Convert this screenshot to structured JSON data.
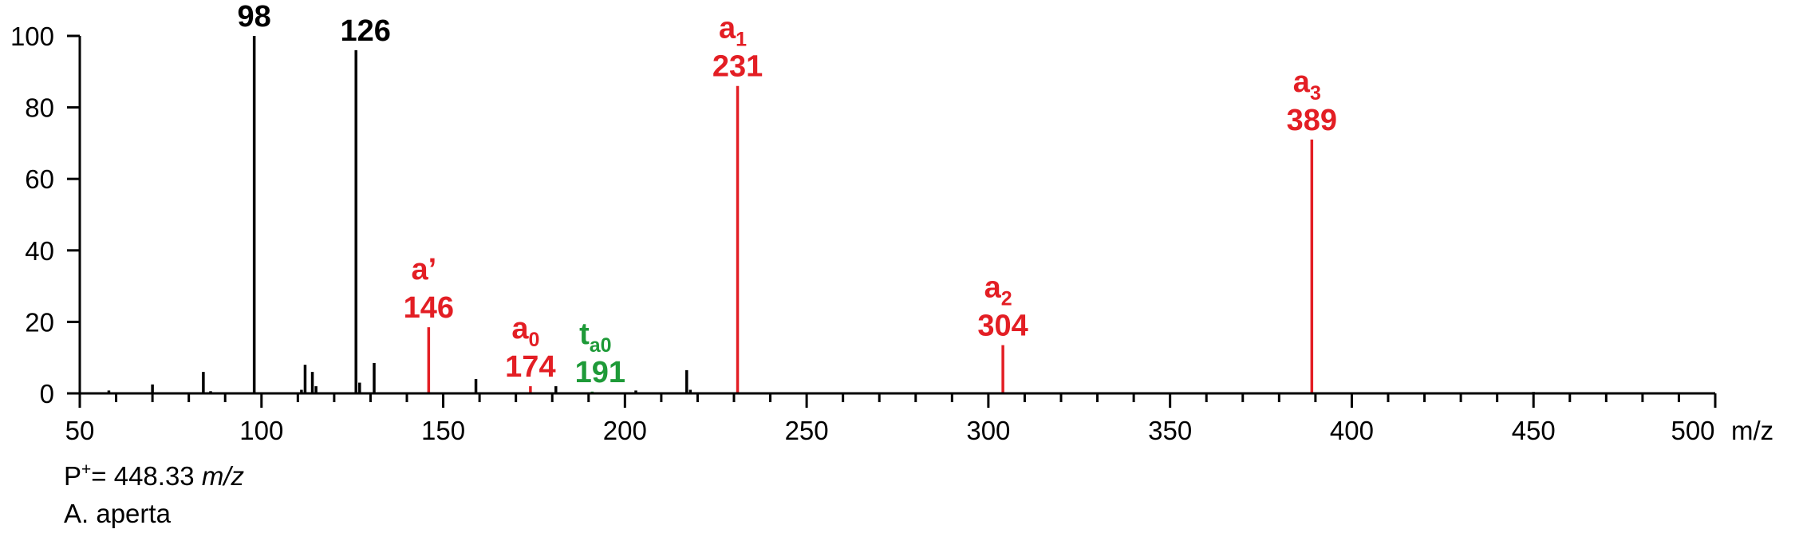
{
  "chart_data": {
    "type": "bar",
    "xlabel": "m/z",
    "xlim": [
      50,
      500
    ],
    "ylim": [
      0,
      100
    ],
    "x_ticks": [
      "50",
      "100",
      "150",
      "200",
      "250",
      "300",
      "350",
      "400",
      "450",
      "500"
    ],
    "x_unit_label": "m/z",
    "y_ticks": [
      "0",
      "20",
      "40",
      "60",
      "80",
      "100"
    ],
    "colors": {
      "black": "#000000",
      "red": "#e31e24",
      "green": "#1e9a38"
    },
    "peaks": [
      {
        "x": 58,
        "y": 0.8,
        "color": "black"
      },
      {
        "x": 70,
        "y": 2.5,
        "color": "black"
      },
      {
        "x": 84,
        "y": 6,
        "color": "black"
      },
      {
        "x": 86,
        "y": 0.6,
        "color": "black"
      },
      {
        "x": 98,
        "y": 100,
        "color": "black",
        "label": "98"
      },
      {
        "x": 111,
        "y": 1,
        "color": "black"
      },
      {
        "x": 112,
        "y": 8,
        "color": "black"
      },
      {
        "x": 114,
        "y": 6,
        "color": "black"
      },
      {
        "x": 115,
        "y": 2,
        "color": "black"
      },
      {
        "x": 126,
        "y": 96,
        "color": "black",
        "label": "126"
      },
      {
        "x": 127,
        "y": 3,
        "color": "black"
      },
      {
        "x": 131,
        "y": 8.5,
        "color": "black"
      },
      {
        "x": 146,
        "y": 18.5,
        "color": "red",
        "label": "146",
        "ion": "a",
        "ion_sub": "’"
      },
      {
        "x": 159,
        "y": 4,
        "color": "black"
      },
      {
        "x": 174,
        "y": 2,
        "color": "red",
        "label": "174",
        "ion": "a",
        "ion_sub": "0"
      },
      {
        "x": 181,
        "y": 2,
        "color": "black"
      },
      {
        "x": 191,
        "y": 0.5,
        "color": "green",
        "label": "191",
        "ion": "t",
        "ion_sub": "a0"
      },
      {
        "x": 203,
        "y": 0.8,
        "color": "black"
      },
      {
        "x": 217,
        "y": 6.5,
        "color": "black"
      },
      {
        "x": 218,
        "y": 1,
        "color": "black"
      },
      {
        "x": 231,
        "y": 86,
        "color": "red",
        "label": "231",
        "ion": "a",
        "ion_sub": "1"
      },
      {
        "x": 304,
        "y": 13.5,
        "color": "red",
        "label": "304",
        "ion": "a",
        "ion_sub": "2"
      },
      {
        "x": 389,
        "y": 71,
        "color": "red",
        "label": "389",
        "ion": "a",
        "ion_sub": "3"
      },
      {
        "x": 450,
        "y": 0.4,
        "color": "black"
      }
    ]
  },
  "notes": {
    "precursor_prefix": "P",
    "precursor_sup": "+",
    "precursor_value": "= 448.33 ",
    "precursor_unit": "m/z",
    "species": "A. aperta"
  }
}
